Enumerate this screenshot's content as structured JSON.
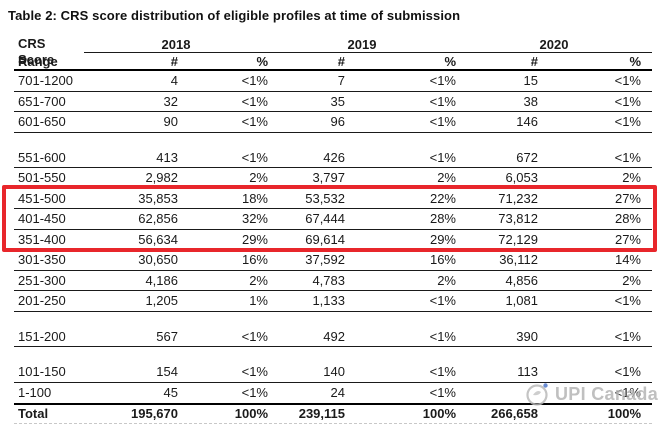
{
  "title": "Table 2: CRS score distribution of eligible profiles at time of submission",
  "table": {
    "corner_header": {
      "line1": "CRS Score",
      "line2": "Range"
    },
    "year_headers": [
      "2018",
      "2019",
      "2020"
    ],
    "sub_headers": [
      "#",
      "%",
      "#",
      "%",
      "#",
      "%"
    ],
    "highlight_color": "#e8262b",
    "rows": [
      {
        "type": "data",
        "cells": [
          "701-1200",
          "4",
          "<1%",
          "7",
          "<1%",
          "15",
          "<1%"
        ]
      },
      {
        "type": "data",
        "cells": [
          "651-700",
          "32",
          "<1%",
          "35",
          "<1%",
          "38",
          "<1%"
        ]
      },
      {
        "type": "data",
        "cells": [
          "601-650",
          "90",
          "<1%",
          "96",
          "<1%",
          "146",
          "<1%"
        ]
      },
      {
        "type": "spacer"
      },
      {
        "type": "data",
        "cells": [
          "551-600",
          "413",
          "<1%",
          "426",
          "<1%",
          "672",
          "<1%"
        ]
      },
      {
        "type": "data",
        "cells": [
          "501-550",
          "2,982",
          "2%",
          "3,797",
          "2%",
          "6,053",
          "2%"
        ]
      },
      {
        "type": "data",
        "highlight": true,
        "cells": [
          "451-500",
          "35,853",
          "18%",
          "53,532",
          "22%",
          "71,232",
          "27%"
        ]
      },
      {
        "type": "data",
        "highlight": true,
        "cells": [
          "401-450",
          "62,856",
          "32%",
          "67,444",
          "28%",
          "73,812",
          "28%"
        ]
      },
      {
        "type": "data",
        "highlight": true,
        "cells": [
          "351-400",
          "56,634",
          "29%",
          "69,614",
          "29%",
          "72,129",
          "27%"
        ]
      },
      {
        "type": "data",
        "cells": [
          "301-350",
          "30,650",
          "16%",
          "37,592",
          "16%",
          "36,112",
          "14%"
        ]
      },
      {
        "type": "data",
        "cells": [
          "251-300",
          "4,186",
          "2%",
          "4,783",
          "2%",
          "4,856",
          "2%"
        ]
      },
      {
        "type": "data",
        "cells": [
          "201-250",
          "1,205",
          "1%",
          "1,133",
          "<1%",
          "1,081",
          "<1%"
        ]
      },
      {
        "type": "spacer"
      },
      {
        "type": "data",
        "cells": [
          "151-200",
          "567",
          "<1%",
          "492",
          "<1%",
          "390",
          "<1%"
        ]
      },
      {
        "type": "spacer"
      },
      {
        "type": "data",
        "cells": [
          "101-150",
          "154",
          "<1%",
          "140",
          "<1%",
          "113",
          "<1%"
        ]
      },
      {
        "type": "data",
        "cells": [
          "1-100",
          "45",
          "<1%",
          "24",
          "<1%",
          "",
          "<1%"
        ]
      },
      {
        "type": "data",
        "total": true,
        "cells": [
          "Total",
          "195,670",
          "100%",
          "239,115",
          "100%",
          "266,658",
          "100%"
        ]
      }
    ]
  },
  "watermark": {
    "icon": "upi-canada-logo-icon",
    "text": "UPI Canada",
    "color": "#b3b3b3",
    "accent_dot_color": "#4a74c9"
  }
}
